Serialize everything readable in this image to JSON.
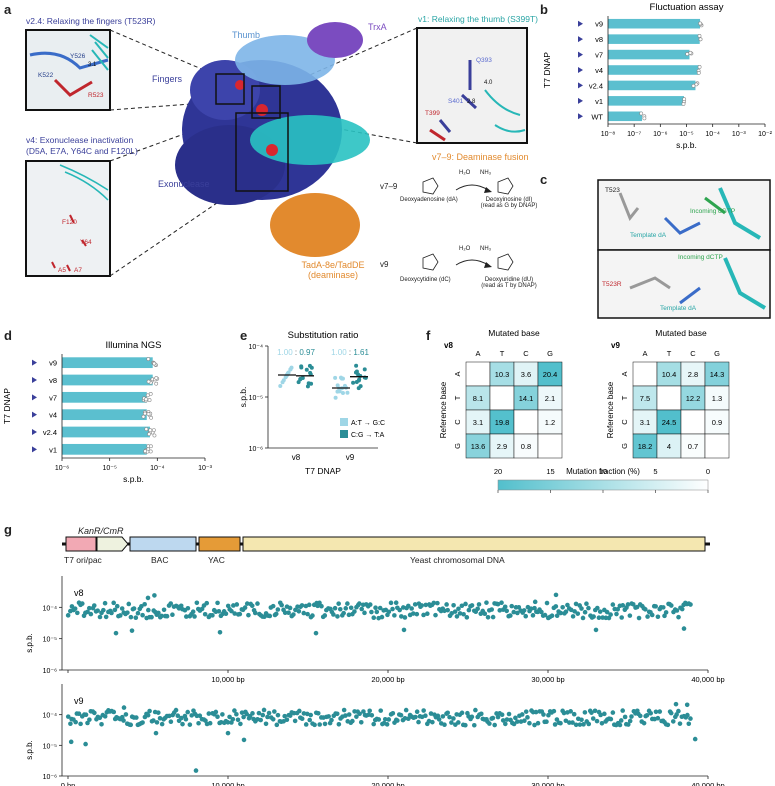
{
  "panel_letters": [
    "a",
    "b",
    "c",
    "d",
    "e",
    "f",
    "g"
  ],
  "panel_a": {
    "callouts": {
      "v24": "v2.4: Relaxing the fingers (T523R)",
      "v1": "v1: Relaxing the thumb (S399T)",
      "v4_line1": "v4: Exonuclease inactivation",
      "v4_line2": "(D5A, E7A, Y64C and F120L)"
    },
    "domains": {
      "thumb": "Thumb",
      "trxa": "TrxA",
      "fingers": "Fingers",
      "exonuclease": "Exonuclease",
      "deaminase_line1": "TadA-8e/TadDE",
      "deaminase_line2": "(deaminase)"
    },
    "residues": {
      "y526": "Y526",
      "k522": "K522",
      "r523": "R523",
      "q393": "Q393",
      "s401": "S401",
      "t399": "T399",
      "f120": "F120",
      "y64": "Y64",
      "a5": "A5",
      "a7": "A7",
      "d1": "3.1",
      "d2": "4.0",
      "d3": "2.8"
    },
    "deaminase": {
      "title": "v7–9: Deaminase fusion",
      "v79": "v7–9",
      "v9": "v9",
      "h2o": "H₂O",
      "nh3": "NH₃",
      "da": "Deoxyadenosine (dA)",
      "di_1": "Deoxyinosine (dI)",
      "di_2": "(read as G by DNAP)",
      "dc": "Deoxycytidine (dC)",
      "du_1": "Deoxyuridine (dU)",
      "du_2": "(read as T by DNAP)"
    }
  },
  "panel_c": {
    "top": {
      "residue": "T523",
      "incoming": "Incoming dGTP",
      "template": "Template dA"
    },
    "bottom": {
      "residue": "T523R",
      "incoming": "Incoming dCTP",
      "template": "Template dA"
    }
  },
  "panel_f": {
    "legend_title": "Mutation fraction (%)",
    "legend_ticks": [
      "20",
      "15",
      "10",
      "5",
      "0"
    ],
    "legend_domain": [
      20,
      0
    ]
  },
  "panel_g": {
    "genes": {
      "kan": "KanR/CmR",
      "ori": "T7 ori/pac",
      "bac": "BAC",
      "yac": "YAC",
      "yeast": "Yeast chromosomal DNA"
    }
  },
  "chart_data": [
    {
      "id": "b",
      "type": "bar",
      "orientation": "horizontal",
      "title": "Fluctuation assay",
      "xlabel": "s.p.b.",
      "ylabel": "T7 DNAP",
      "x_scale": "log",
      "xlim": [
        1e-08,
        0.01
      ],
      "x_ticks": [
        "10⁻⁸",
        "10⁻⁷",
        "10⁻⁶",
        "10⁻⁵",
        "10⁻⁴",
        "10⁻³",
        "10⁻²"
      ],
      "categories": [
        "v9",
        "v8",
        "v7",
        "v4",
        "v2.4",
        "v1",
        "WT"
      ],
      "values": [
        3.3e-05,
        3.2e-05,
        1.3e-05,
        3e-05,
        2.2e-05,
        8e-06,
        2e-07
      ],
      "bar_color": "#5bbfcf"
    },
    {
      "id": "d",
      "type": "bar",
      "orientation": "horizontal",
      "title": "Illumina NGS",
      "xlabel": "s.p.b.",
      "ylabel": "T7 DNAP",
      "x_scale": "log",
      "xlim": [
        1e-06,
        0.001
      ],
      "x_ticks": [
        "10⁻⁶",
        "10⁻⁵",
        "10⁻⁴",
        "10⁻³"
      ],
      "categories": [
        "v9",
        "v8",
        "v7",
        "v4",
        "v2.4",
        "v1"
      ],
      "values": [
        8e-05,
        8e-05,
        6e-05,
        6e-05,
        7e-05,
        6e-05
      ],
      "bar_color": "#5bbfcf"
    },
    {
      "id": "e",
      "type": "scatter",
      "title": "Substitution ratio",
      "xlabel": "T7 DNAP",
      "ylabel": "s.p.b.",
      "y_scale": "log",
      "ylim": [
        1e-06,
        0.0001
      ],
      "y_ticks": [
        "10⁻⁴",
        "10⁻⁵",
        "10⁻⁶"
      ],
      "categories": [
        "v8",
        "v9"
      ],
      "ratios": [
        {
          "a": "1.00",
          "b": "0.97"
        },
        {
          "a": "1.00",
          "b": "1.61"
        }
      ],
      "ratio_sep": ":",
      "series": [
        {
          "name": "A:T → G:C",
          "color": "#9fd6e6",
          "medians": [
            2.7e-05,
            1.5e-05
          ]
        },
        {
          "name": "C:G → T:A",
          "color": "#2b8d96",
          "medians": [
            2.6e-05,
            2.5e-05
          ]
        }
      ]
    },
    {
      "id": "f",
      "type": "heatmap",
      "xlabel": "Mutated base",
      "ylabel": "Reference base",
      "bases": [
        "A",
        "T",
        "C",
        "G"
      ],
      "matrices": [
        {
          "name": "v8",
          "values": [
            [
              null,
              10.3,
              3.6,
              20.4
            ],
            [
              8.1,
              null,
              14.1,
              2.1
            ],
            [
              3.1,
              19.8,
              null,
              1.2
            ],
            [
              13.6,
              2.9,
              0.8,
              null
            ]
          ]
        },
        {
          "name": "v9",
          "values": [
            [
              null,
              10.4,
              2.8,
              14.3
            ],
            [
              7.5,
              null,
              12.2,
              1.3
            ],
            [
              3.1,
              24.5,
              null,
              0.9
            ],
            [
              18.2,
              4.0,
              0.7,
              null
            ]
          ]
        }
      ]
    },
    {
      "id": "g",
      "type": "scatter",
      "xlabel": "",
      "ylabel": "s.p.b.",
      "y_scale": "log",
      "y_ticks": [
        "10⁻⁴",
        "10⁻⁵",
        "10⁻⁶"
      ],
      "xlim": [
        0,
        40000
      ],
      "x_ticks": [
        "0 bp",
        "10,000 bp",
        "20,000 bp",
        "30,000 bp",
        "40,000 bp"
      ],
      "series": [
        {
          "name": "v8",
          "typical": 8e-05,
          "color": "#2b8d96",
          "outliers": [
            [
              3000,
              1.5e-05
            ],
            [
              4000,
              1.8e-05
            ],
            [
              5000,
              0.0002
            ],
            [
              5400,
              0.00024
            ],
            [
              9500,
              1.6e-05
            ],
            [
              15500,
              1.5e-05
            ],
            [
              21000,
              1.9e-05
            ],
            [
              29200,
              0.00015
            ],
            [
              30500,
              0.00025
            ],
            [
              33000,
              1.9e-05
            ],
            [
              38500,
              2.1e-05
            ]
          ]
        },
        {
          "name": "v9",
          "typical": 8e-05,
          "color": "#2b8d96",
          "outliers": [
            [
              200,
              1.3e-05
            ],
            [
              1100,
              1.1e-05
            ],
            [
              3500,
              0.00017
            ],
            [
              5500,
              2.5e-05
            ],
            [
              8000,
              1.5e-06
            ],
            [
              10000,
              2.5e-05
            ],
            [
              11000,
              1.5e-05
            ],
            [
              38000,
              0.00022
            ],
            [
              38700,
              0.00021
            ],
            [
              39200,
              1.6e-05
            ]
          ]
        }
      ]
    }
  ]
}
